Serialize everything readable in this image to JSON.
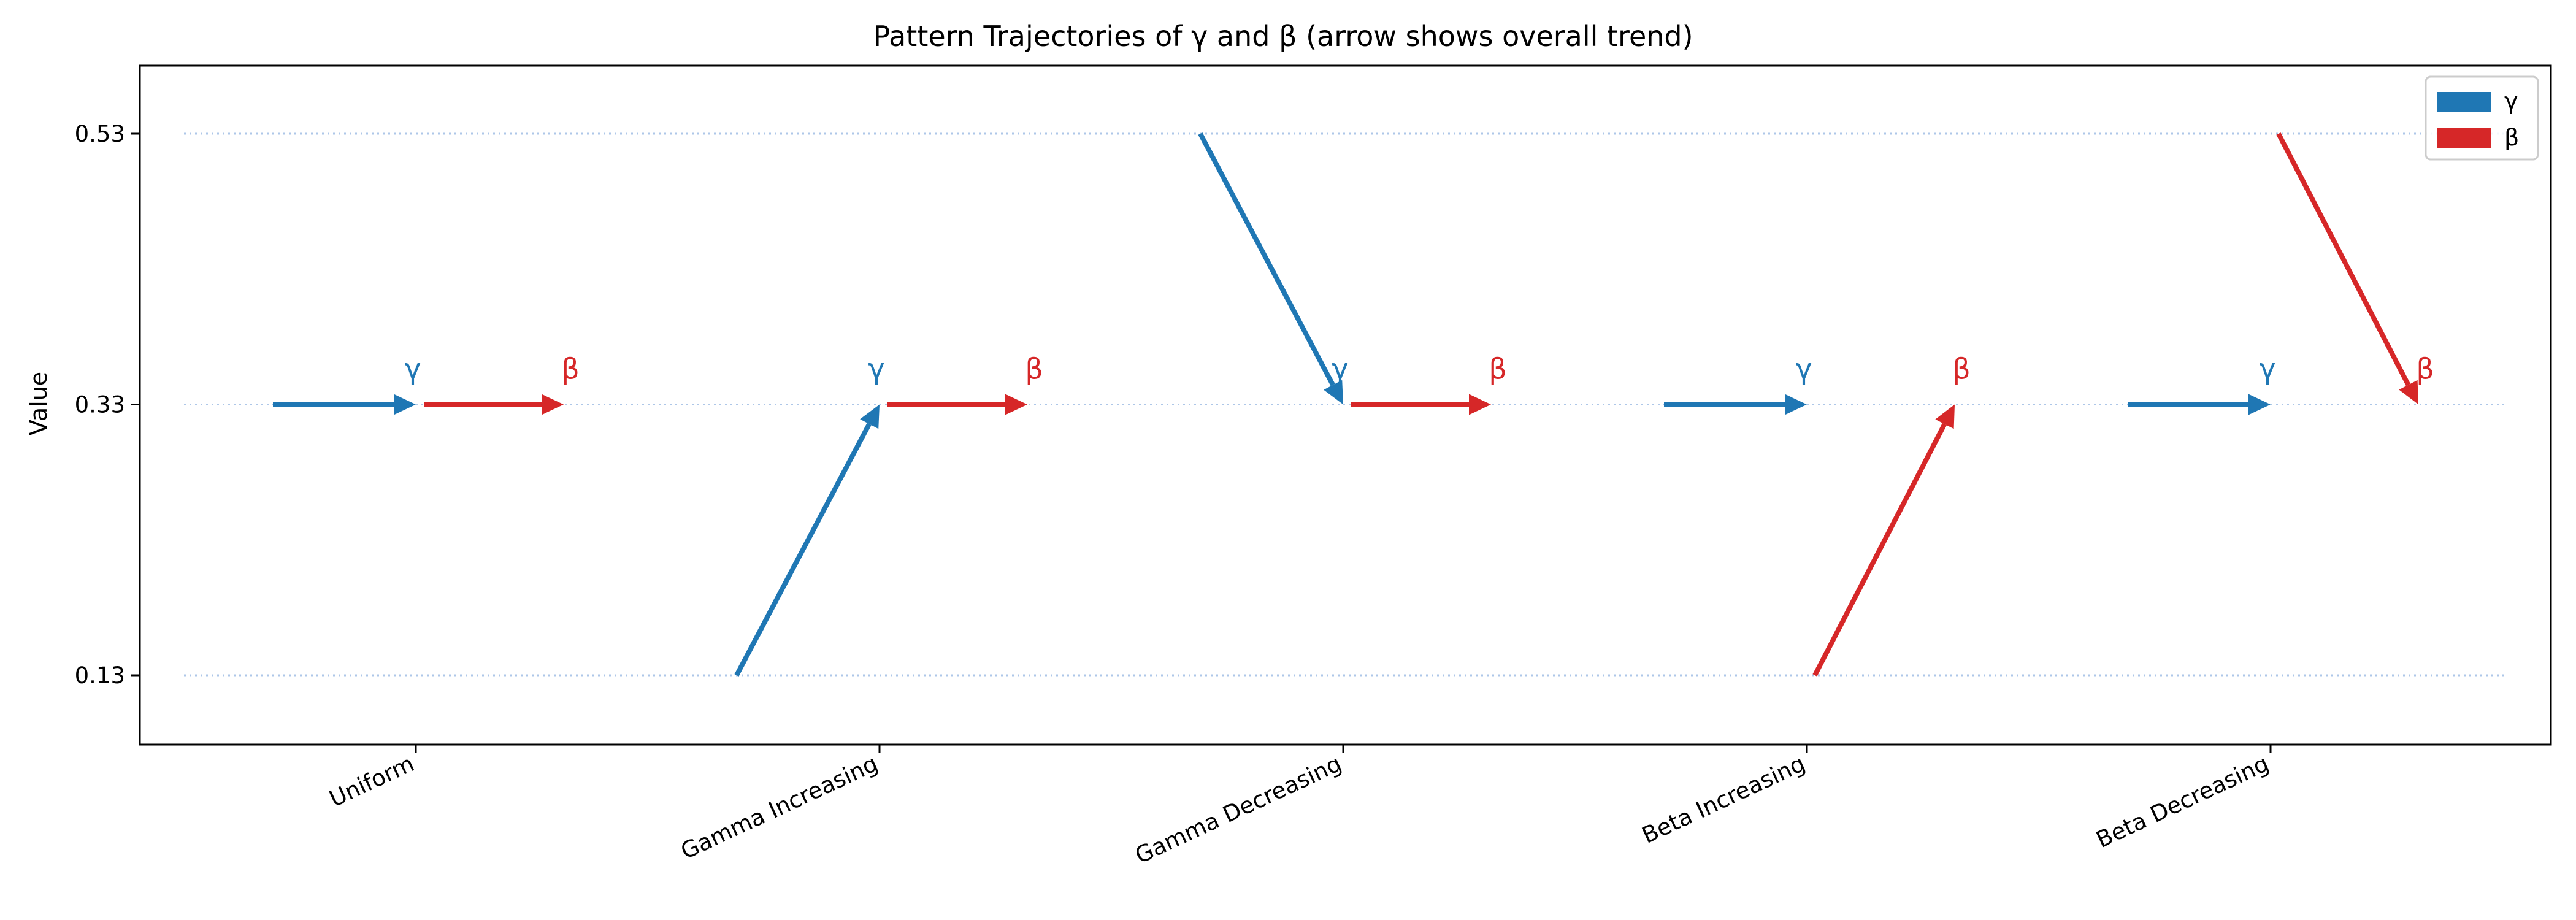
{
  "chart_data": {
    "type": "line",
    "title": "Pattern Trajectories of γ and β (arrow shows overall trend)",
    "xlabel": "",
    "ylabel": "Value",
    "categories": [
      "Uniform",
      "Gamma Increasing",
      "Gamma Decreasing",
      "Beta Increasing",
      "Beta Decreasing"
    ],
    "y_ticks": [
      0.13,
      0.33,
      0.53
    ],
    "ylim": [
      0.08,
      0.58
    ],
    "grid": "dotted horizontal lines at y ticks",
    "legend": {
      "placement": "top-right",
      "entries": [
        "γ",
        "β"
      ]
    },
    "series": [
      {
        "name": "γ",
        "color": "#1f77b4",
        "segments": [
          {
            "category": "Uniform",
            "start": 0.33,
            "end": 0.33
          },
          {
            "category": "Gamma Increasing",
            "start": 0.13,
            "end": 0.33
          },
          {
            "category": "Gamma Decreasing",
            "start": 0.53,
            "end": 0.33
          },
          {
            "category": "Beta Increasing",
            "start": 0.33,
            "end": 0.33
          },
          {
            "category": "Beta Decreasing",
            "start": 0.33,
            "end": 0.33
          }
        ]
      },
      {
        "name": "β",
        "color": "#d62728",
        "segments": [
          {
            "category": "Uniform",
            "start": 0.33,
            "end": 0.33
          },
          {
            "category": "Gamma Increasing",
            "start": 0.33,
            "end": 0.33
          },
          {
            "category": "Gamma Decreasing",
            "start": 0.33,
            "end": 0.33
          },
          {
            "category": "Beta Increasing",
            "start": 0.13,
            "end": 0.33
          },
          {
            "category": "Beta Decreasing",
            "start": 0.53,
            "end": 0.33
          }
        ]
      }
    ]
  }
}
